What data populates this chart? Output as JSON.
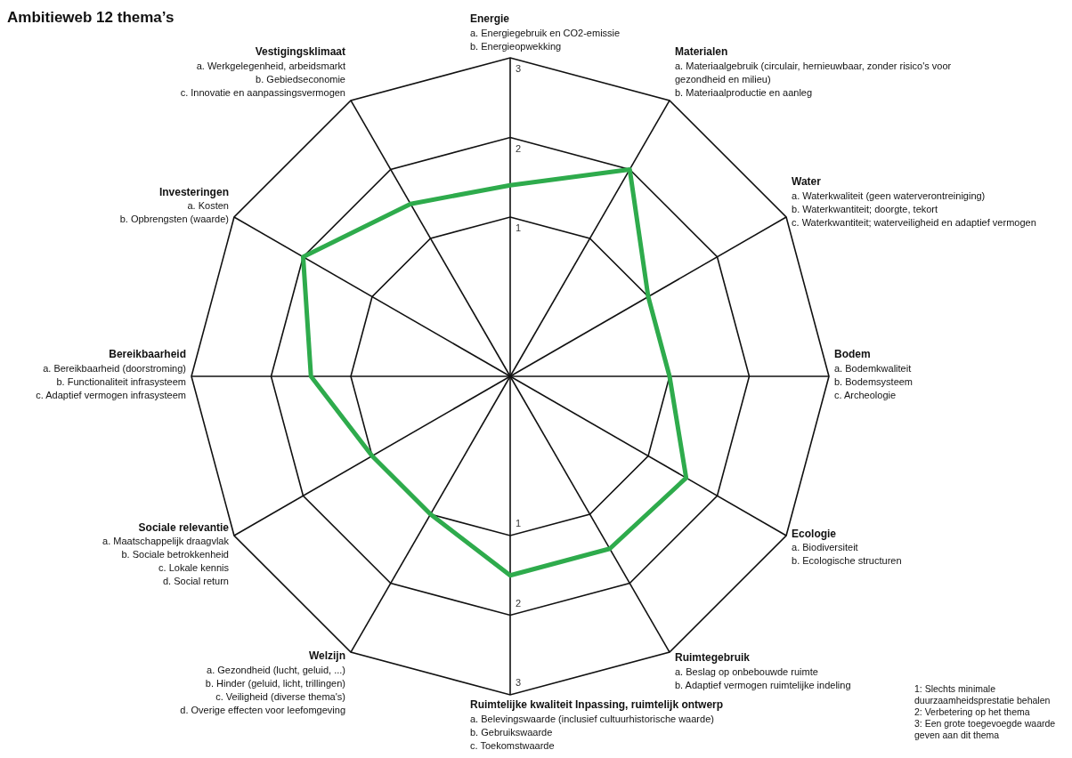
{
  "chart_data": {
    "type": "radar",
    "title": "Ambitieweb 12 thema’s",
    "categories": [
      "Energie\na. Energiegebruik en CO2-emissie\nb. Energieopwekking",
      "Materialen\na. Materiaalgebruik (circulair, hernieuwbaar, zonder risico's voor\ngezondheid en milieu)\nb. Materiaalproductie en aanleg",
      "Water\na. Waterkwaliteit (geen waterverontreiniging)\nb. Waterkwantiteit; doorgte, tekort\nc. Waterkwantiteit; waterveiligheid en adaptief vermogen",
      "Bodem\na. Bodemkwaliteit\nb. Bodemsysteem\nc. Archeologie",
      "Ecologie\na. Biodiversiteit\nb. Ecologische structuren",
      "Ruimtegebruik\na. Beslag op onbebouwde ruimte\nb. Adaptief vermogen ruimtelijke indeling",
      "Ruimtelijke kwaliteit Inpassing, ruimtelijk ontwerp\na. Belevingswaarde (inclusief cultuurhistorische waarde)\nb. Gebruikswaarde\nc. Toekomstwaarde",
      "Welzijn\na. Gezondheid (lucht, geluid, ...)\nb. Hinder (geluid, licht, trillingen)\nc. Veiligheid (diverse thema's)\nd. Overige effecten voor leefomgeving",
      "Sociale relevantie\na. Maatschappelijk draagvlak\nb. Sociale betrokkenheid\nc. Lokale kennis\nd. Social return",
      "Bereikbaarheid\na. Bereikbaarheid (doorstroming)\nb. Functionaliteit infrasysteem\nc. Adaptief vermogen infrasysteem",
      "Investeringen\na. Kosten\nb. Opbrengsten (waarde)",
      "Vestigingsklimaat\na. Werkgelegenheid, arbeidsmarkt\nb. Gebiedseconomie\nc. Innovatie en aanpassingsvermogen"
    ],
    "series": [
      {
        "color": "#2eab4c",
        "values": [
          1.4,
          2.0,
          1.0,
          1.0,
          1.55,
          1.5,
          1.5,
          1.0,
          1.0,
          1.5,
          2.0,
          1.5
        ]
      }
    ],
    "ylim": [
      -1,
      3
    ],
    "yticks": [
      1,
      2,
      3
    ],
    "grid": true,
    "legend": false,
    "marker": "none",
    "annotations": [
      "1: Slechts minimale duurzaamheidsprestatie behalen",
      "2: Verbetering op het thema",
      "3: Een grote toegevoegde waarde geven aan dit thema",
      "1",
      "2",
      "3"
    ]
  }
}
